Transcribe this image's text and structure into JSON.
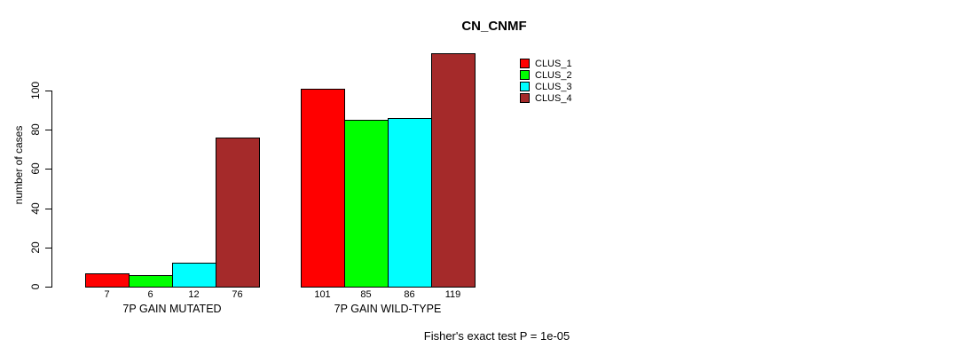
{
  "chart_data": {
    "type": "bar",
    "title": "CN_CNMF",
    "ylabel": "number of cases",
    "xlabel": "",
    "categories": [
      "7P GAIN MUTATED",
      "7P GAIN WILD-TYPE"
    ],
    "series": [
      {
        "name": "CLUS_1",
        "color": "#FF0000",
        "values": [
          7,
          101
        ]
      },
      {
        "name": "CLUS_2",
        "color": "#00FF00",
        "values": [
          6,
          85
        ]
      },
      {
        "name": "CLUS_3",
        "color": "#00FFFF",
        "values": [
          12,
          86
        ]
      },
      {
        "name": "CLUS_4",
        "color": "#A52A2A",
        "values": [
          76,
          119
        ]
      }
    ],
    "yticks": [
      0,
      20,
      40,
      60,
      80,
      100
    ],
    "ylim": [
      0,
      119
    ],
    "grid": false,
    "bar_value_labels_shown": true,
    "legend_position": "top-right",
    "annotation": "Fisher's exact test P = 1e-05"
  }
}
